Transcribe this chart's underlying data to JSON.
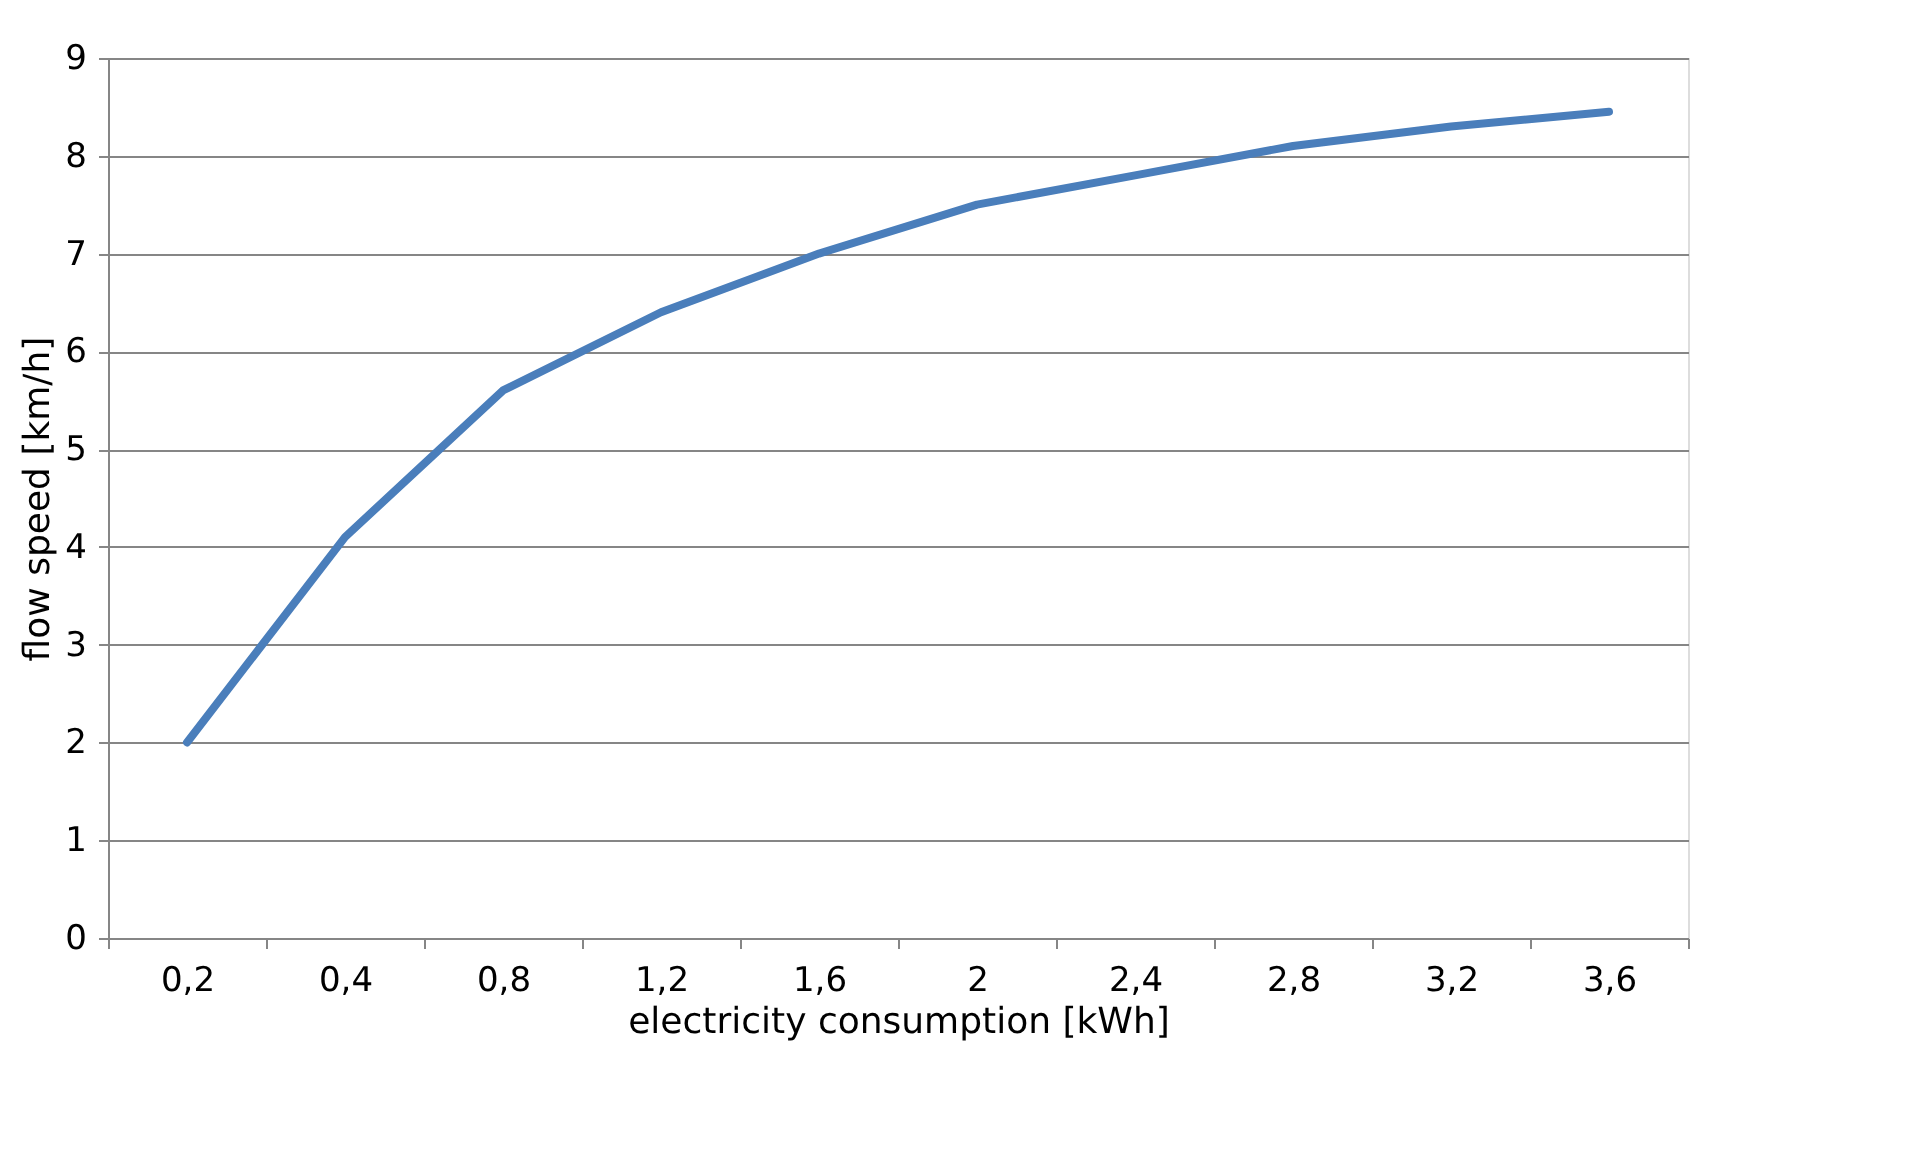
{
  "chart_data": {
    "type": "line",
    "xlabel": "electricity consumption [kWh]",
    "ylabel": "flow speed [km/h]",
    "categories": [
      "0,2",
      "0,4",
      "0,8",
      "1,2",
      "1,6",
      "2",
      "2,4",
      "2,8",
      "3,2",
      "3,6"
    ],
    "series": [
      {
        "color": "#4a7ebb",
        "values": [
          2,
          4.1,
          5.6,
          6.4,
          7.0,
          7.5,
          7.8,
          8.1,
          8.3,
          8.45
        ]
      }
    ],
    "ylim": [
      0,
      9
    ],
    "yticks": [
      0,
      1,
      2,
      3,
      4,
      5,
      6,
      7,
      8,
      9
    ],
    "grid": "y",
    "marker": "none",
    "line_style": "solid"
  }
}
